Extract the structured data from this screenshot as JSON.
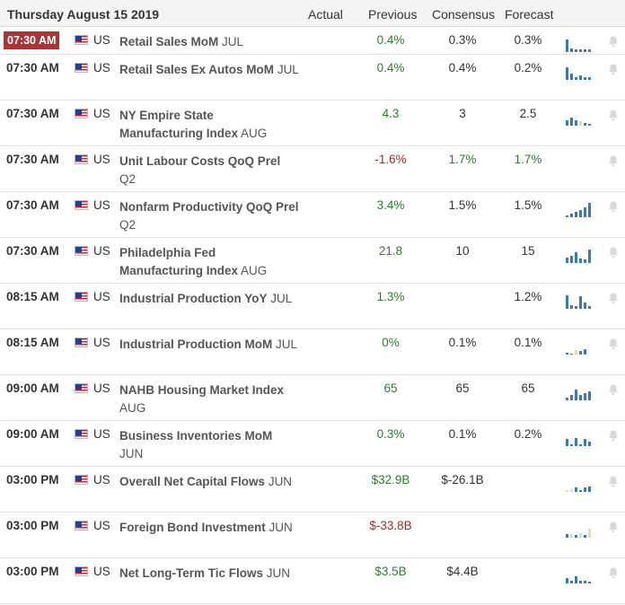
{
  "header": {
    "date": "Thursday August 15 2019",
    "col_actual": "Actual",
    "col_previous": "Previous",
    "col_consensus": "Consensus",
    "col_forecast": "Forecast"
  },
  "colors": {
    "highlight_time_bg": "#a63636",
    "positive": "#2e7d32",
    "negative": "#a62828",
    "bar_blue": "#3b79b4",
    "bar_tan": "#f1d8a8"
  },
  "rows": [
    {
      "time": "07:30 AM",
      "country": "US",
      "name": "Retail Sales MoM",
      "period": "JUL",
      "previous": "0.4%",
      "previous_color": "green",
      "consensus": "0.3%",
      "consensus_color": "dark",
      "forecast": "0.3%",
      "forecast_color": "dark",
      "highlight": true,
      "short": true,
      "spark": [
        [
          0,
          14,
          "p"
        ],
        [
          5,
          4,
          "p"
        ],
        [
          10,
          3,
          "p"
        ],
        [
          15,
          3,
          "p"
        ],
        [
          20,
          3,
          "p"
        ],
        [
          25,
          3,
          "p"
        ]
      ]
    },
    {
      "time": "07:30 AM",
      "country": "US",
      "name": "Retail Sales Ex Autos MoM",
      "period": "JUL",
      "previous": "0.4%",
      "previous_color": "green",
      "consensus": "0.4%",
      "consensus_color": "dark",
      "forecast": "0.2%",
      "forecast_color": "dark",
      "highlight": false,
      "short": false,
      "spark": [
        [
          0,
          14,
          "p"
        ],
        [
          5,
          7,
          "p"
        ],
        [
          10,
          3,
          "p"
        ],
        [
          15,
          5,
          "p"
        ],
        [
          20,
          3,
          "p"
        ],
        [
          25,
          3,
          "p"
        ]
      ]
    },
    {
      "time": "07:30 AM",
      "country": "US",
      "name": "NY Empire State Manufacturing Index",
      "period": "AUG",
      "previous": "4.3",
      "previous_color": "green",
      "consensus": "3",
      "consensus_color": "dark",
      "forecast": "2.5",
      "forecast_color": "dark",
      "highlight": false,
      "short": false,
      "spark": [
        [
          0,
          6,
          "p"
        ],
        [
          5,
          9,
          "p"
        ],
        [
          10,
          6,
          "p"
        ],
        [
          15,
          5,
          "n"
        ],
        [
          20,
          3,
          "p"
        ],
        [
          25,
          2,
          "p"
        ]
      ]
    },
    {
      "time": "07:30 AM",
      "country": "US",
      "name": "Unit Labour Costs QoQ Prel",
      "period": "Q2",
      "previous": "-1.6%",
      "previous_color": "red",
      "consensus": "1.7%",
      "consensus_color": "green",
      "forecast": "1.7%",
      "forecast_color": "green",
      "highlight": false,
      "short": false,
      "spark": []
    },
    {
      "time": "07:30 AM",
      "country": "US",
      "name": "Nonfarm Productivity QoQ Prel",
      "period": "Q2",
      "previous": "3.4%",
      "previous_color": "green",
      "consensus": "1.5%",
      "consensus_color": "dark",
      "forecast": "1.5%",
      "forecast_color": "dark",
      "highlight": false,
      "short": false,
      "spark": [
        [
          0,
          2,
          "p"
        ],
        [
          5,
          4,
          "p"
        ],
        [
          10,
          6,
          "p"
        ],
        [
          15,
          8,
          "p"
        ],
        [
          20,
          11,
          "p"
        ],
        [
          25,
          16,
          "p"
        ]
      ]
    },
    {
      "time": "07:30 AM",
      "country": "US",
      "name": "Philadelphia Fed Manufacturing Index",
      "period": "AUG",
      "previous": "21.8",
      "previous_color": "green",
      "consensus": "10",
      "consensus_color": "dark",
      "forecast": "15",
      "forecast_color": "dark",
      "highlight": false,
      "short": false,
      "spark": [
        [
          0,
          6,
          "p"
        ],
        [
          5,
          8,
          "p"
        ],
        [
          10,
          12,
          "p"
        ],
        [
          15,
          5,
          "p"
        ],
        [
          20,
          4,
          "p"
        ],
        [
          25,
          15,
          "p"
        ]
      ]
    },
    {
      "time": "08:15 AM",
      "country": "US",
      "name": "Industrial Production YoY",
      "period": "JUL",
      "previous": "1.3%",
      "previous_color": "green",
      "consensus": "",
      "consensus_color": "dark",
      "forecast": "1.2%",
      "forecast_color": "dark",
      "highlight": false,
      "short": false,
      "spark": [
        [
          0,
          15,
          "p"
        ],
        [
          5,
          4,
          "p"
        ],
        [
          10,
          3,
          "p"
        ],
        [
          15,
          14,
          "p"
        ],
        [
          20,
          7,
          "p"
        ],
        [
          25,
          3,
          "p"
        ]
      ]
    },
    {
      "time": "08:15 AM",
      "country": "US",
      "name": "Industrial Production MoM",
      "period": "JUL",
      "previous": "0%",
      "previous_color": "green",
      "consensus": "0.1%",
      "consensus_color": "dark",
      "forecast": "0.1%",
      "forecast_color": "dark",
      "highlight": false,
      "short": false,
      "spark": [
        [
          0,
          2,
          "p"
        ],
        [
          5,
          1,
          "p"
        ],
        [
          10,
          5,
          "n"
        ],
        [
          15,
          4,
          "p"
        ],
        [
          20,
          6,
          "p"
        ],
        [
          25,
          0,
          "p"
        ]
      ]
    },
    {
      "time": "09:00 AM",
      "country": "US",
      "name": "NAHB Housing Market Index",
      "period": "AUG",
      "previous": "65",
      "previous_color": "green",
      "consensus": "65",
      "consensus_color": "dark",
      "forecast": "65",
      "forecast_color": "dark",
      "highlight": false,
      "short": false,
      "spark": [
        [
          0,
          3,
          "p"
        ],
        [
          5,
          6,
          "p"
        ],
        [
          10,
          12,
          "p"
        ],
        [
          15,
          6,
          "p"
        ],
        [
          20,
          8,
          "p"
        ],
        [
          25,
          10,
          "p"
        ]
      ]
    },
    {
      "time": "09:00 AM",
      "country": "US",
      "name": "Business Inventories MoM",
      "period": "JUN",
      "previous": "0.3%",
      "previous_color": "green",
      "consensus": "0.1%",
      "consensus_color": "dark",
      "forecast": "0.2%",
      "forecast_color": "dark",
      "highlight": false,
      "short": false,
      "spark": [
        [
          0,
          8,
          "p"
        ],
        [
          5,
          2,
          "p"
        ],
        [
          10,
          9,
          "p"
        ],
        [
          15,
          2,
          "p"
        ],
        [
          20,
          8,
          "p"
        ],
        [
          25,
          5,
          "p"
        ]
      ]
    },
    {
      "time": "03:00 PM",
      "country": "US",
      "name": "Overall Net Capital Flows",
      "period": "JUN",
      "previous": "$32.9B",
      "previous_color": "green",
      "consensus": "$-26.1B",
      "consensus_color": "dark",
      "forecast": "",
      "forecast_color": "dark",
      "highlight": false,
      "short": false,
      "spark": [
        [
          0,
          2,
          "n"
        ],
        [
          5,
          3,
          "n"
        ],
        [
          10,
          5,
          "p"
        ],
        [
          15,
          2,
          "p"
        ],
        [
          20,
          5,
          "p"
        ],
        [
          25,
          6,
          "p"
        ]
      ]
    },
    {
      "time": "03:00 PM",
      "country": "US",
      "name": "Foreign Bond Investment",
      "period": "JUN",
      "previous": "$-33.8B",
      "previous_color": "red",
      "consensus": "",
      "consensus_color": "dark",
      "forecast": "",
      "forecast_color": "dark",
      "highlight": false,
      "short": false,
      "spark": [
        [
          0,
          4,
          "p"
        ],
        [
          5,
          4,
          "n"
        ],
        [
          10,
          3,
          "p"
        ],
        [
          15,
          5,
          "n"
        ],
        [
          20,
          3,
          "p"
        ],
        [
          25,
          10,
          "n"
        ]
      ]
    },
    {
      "time": "03:00 PM",
      "country": "US",
      "name": "Net Long-Term Tic Flows",
      "period": "JUN",
      "previous": "$3.5B",
      "previous_color": "green",
      "consensus": "$4.4B",
      "consensus_color": "dark",
      "forecast": "",
      "forecast_color": "dark",
      "highlight": false,
      "short": false,
      "spark": [
        [
          0,
          6,
          "p"
        ],
        [
          5,
          3,
          "p"
        ],
        [
          10,
          8,
          "p"
        ],
        [
          15,
          3,
          "p"
        ],
        [
          20,
          3,
          "p"
        ],
        [
          25,
          2,
          "p"
        ]
      ]
    }
  ]
}
